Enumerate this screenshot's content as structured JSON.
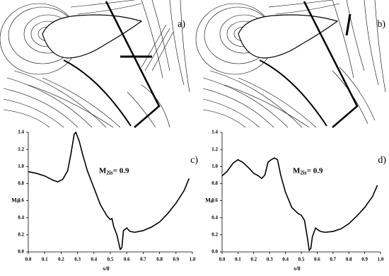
{
  "panels": [
    {
      "label": "a)"
    },
    {
      "label": "b)"
    }
  ],
  "chart_data": [
    {
      "type": "line",
      "panel_label": "c)",
      "x_label": "s/0",
      "y_label": "M",
      "y_label_sub": "is",
      "annotation": {
        "text": "M",
        "sub": "2is",
        "rest": "= 0.9"
      },
      "color": "#000000",
      "x": [
        0,
        0.05,
        0.1,
        0.15,
        0.18,
        0.21,
        0.24,
        0.26,
        0.28,
        0.29,
        0.31,
        0.33,
        0.36,
        0.4,
        0.44,
        0.48,
        0.5,
        0.51,
        0.52,
        0.54,
        0.56,
        0.57,
        0.58,
        0.6,
        0.62,
        0.65,
        0.7,
        0.75,
        0.8,
        0.85,
        0.9,
        0.95,
        0.98
      ],
      "values": [
        0.94,
        0.92,
        0.89,
        0.84,
        0.82,
        0.85,
        0.95,
        1.15,
        1.38,
        1.4,
        1.3,
        1.15,
        0.95,
        0.75,
        0.55,
        0.42,
        0.38,
        0.39,
        0.3,
        0.2,
        0.03,
        0.05,
        0.25,
        0.28,
        0.24,
        0.23,
        0.25,
        0.29,
        0.35,
        0.45,
        0.57,
        0.72,
        0.86
      ],
      "xlim": [
        0,
        1
      ],
      "ylim": [
        0,
        1.4
      ],
      "xticks": [
        {
          "value": 0,
          "label": "0.0"
        },
        0.1,
        0.2,
        0.3,
        0.4,
        0.5,
        0.6,
        0.7,
        0.8,
        0.9,
        {
          "value": 1,
          "label": "1.0"
        }
      ],
      "yticks": [
        {
          "value": 0,
          "label": "0.0"
        },
        0.2,
        0.4,
        0.6,
        0.8,
        {
          "value": 1,
          "label": "1.0"
        },
        1.2,
        1.4
      ]
    },
    {
      "type": "line",
      "panel_label": "d)",
      "x_label": "s/0",
      "y_label": "M",
      "y_label_sub": "is",
      "annotation": {
        "text": "M",
        "sub": "2is",
        "rest": "= 0.9"
      },
      "color": "#000000",
      "x": [
        0,
        0.03,
        0.07,
        0.1,
        0.13,
        0.17,
        0.2,
        0.23,
        0.25,
        0.27,
        0.29,
        0.31,
        0.33,
        0.35,
        0.37,
        0.4,
        0.44,
        0.48,
        0.5,
        0.52,
        0.54,
        0.55,
        0.56,
        0.57,
        0.59,
        0.62,
        0.65,
        0.7,
        0.75,
        0.8,
        0.85,
        0.9,
        0.95,
        0.98
      ],
      "values": [
        0.89,
        0.94,
        1.04,
        1.08,
        1.05,
        0.98,
        0.92,
        0.89,
        0.86,
        0.9,
        1.05,
        1.08,
        1.1,
        1.08,
        0.9,
        0.7,
        0.52,
        0.45,
        0.43,
        0.37,
        0.15,
        0.02,
        0.04,
        0.18,
        0.28,
        0.24,
        0.23,
        0.24,
        0.27,
        0.33,
        0.42,
        0.52,
        0.65,
        0.78
      ],
      "xlim": [
        0,
        1
      ],
      "ylim": [
        0,
        1.4
      ],
      "xticks": [
        {
          "value": 0,
          "label": "0.0"
        },
        0.1,
        0.2,
        0.3,
        0.4,
        0.5,
        0.6,
        0.7,
        0.8,
        0.9,
        {
          "value": 1,
          "label": "1.0"
        }
      ],
      "yticks": [
        {
          "value": 0,
          "label": "0.0"
        },
        0.2,
        0.4,
        0.6,
        0.8,
        {
          "value": 1,
          "label": "1.0"
        },
        1.2,
        1.4
      ]
    }
  ]
}
